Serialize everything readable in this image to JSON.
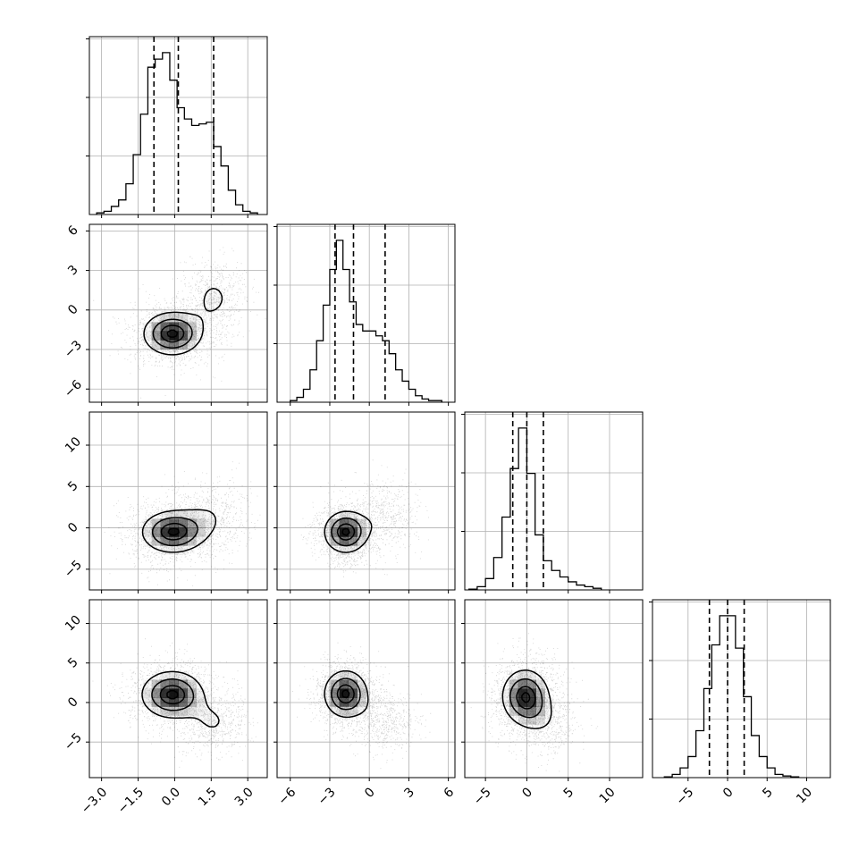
{
  "chart_data": {
    "type": "corner",
    "grid": true,
    "parameters": [
      {
        "range": [
          -3.5,
          3.8
        ],
        "ticks": [
          -3.0,
          -1.5,
          0.0,
          1.5,
          3.0
        ],
        "tick_labels": [
          "−3.0",
          "−1.5",
          "0.0",
          "1.5",
          "3.0"
        ],
        "quantiles": [
          -0.85,
          0.15,
          1.6
        ],
        "histogram": {
          "bin_edges": [
            -3.2,
            -2.9,
            -2.6,
            -2.3,
            -2.0,
            -1.7,
            -1.4,
            -1.1,
            -0.8,
            -0.5,
            -0.2,
            0.1,
            0.4,
            0.7,
            1.0,
            1.3,
            1.6,
            1.9,
            2.2,
            2.5,
            2.8,
            3.1,
            3.4
          ],
          "counts": [
            0.01,
            0.02,
            0.05,
            0.09,
            0.19,
            0.37,
            0.62,
            0.91,
            0.96,
            1.0,
            0.83,
            0.66,
            0.59,
            0.55,
            0.56,
            0.57,
            0.42,
            0.3,
            0.15,
            0.06,
            0.02,
            0.01
          ]
        }
      },
      {
        "range": [
          -7,
          6.5
        ],
        "ticks": [
          -6,
          -3,
          0,
          3,
          6
        ],
        "tick_labels": [
          "−6",
          "−3",
          "0",
          "3",
          "6"
        ],
        "quantiles": [
          -2.6,
          -1.2,
          1.2
        ],
        "histogram": {
          "bin_edges": [
            -6.0,
            -5.5,
            -5.0,
            -4.5,
            -4.0,
            -3.5,
            -3.0,
            -2.5,
            -2.0,
            -1.5,
            -1.0,
            -0.5,
            0.0,
            0.5,
            1.0,
            1.5,
            2.0,
            2.5,
            3.0,
            3.5,
            4.0,
            4.5,
            5.0,
            5.5
          ],
          "counts": [
            0.01,
            0.03,
            0.08,
            0.2,
            0.38,
            0.6,
            0.82,
            1.0,
            0.82,
            0.62,
            0.48,
            0.44,
            0.44,
            0.41,
            0.38,
            0.3,
            0.2,
            0.13,
            0.08,
            0.04,
            0.02,
            0.01,
            0.01
          ]
        }
      },
      {
        "range": [
          -7.5,
          14
        ],
        "ticks": [
          -5,
          0,
          5,
          10
        ],
        "tick_labels": [
          "−5",
          "0",
          "5",
          "10"
        ],
        "quantiles": [
          -1.7,
          0.0,
          2.0
        ],
        "histogram": {
          "bin_edges": [
            -7.0,
            -6.0,
            -5.0,
            -4.0,
            -3.0,
            -2.0,
            -1.0,
            0.0,
            1.0,
            2.0,
            3.0,
            4.0,
            5.0,
            6.0,
            7.0,
            8.0,
            9.0
          ],
          "counts": [
            0.005,
            0.02,
            0.07,
            0.2,
            0.45,
            0.75,
            1.0,
            0.72,
            0.34,
            0.18,
            0.12,
            0.08,
            0.05,
            0.03,
            0.02,
            0.01
          ]
        }
      },
      {
        "range": [
          -9.5,
          13
        ],
        "ticks": [
          -5,
          0,
          5,
          10
        ],
        "tick_labels": [
          "−5",
          "0",
          "5",
          "10"
        ],
        "quantiles": [
          -2.3,
          0.0,
          2.1
        ],
        "histogram": {
          "bin_edges": [
            -8.0,
            -7.0,
            -6.0,
            -5.0,
            -4.0,
            -3.0,
            -2.0,
            -1.0,
            0.0,
            1.0,
            2.0,
            3.0,
            4.0,
            5.0,
            6.0,
            7.0,
            8.0,
            9.0
          ],
          "counts": [
            0.005,
            0.02,
            0.06,
            0.13,
            0.29,
            0.55,
            0.82,
            1.0,
            1.0,
            0.8,
            0.5,
            0.26,
            0.13,
            0.06,
            0.02,
            0.01,
            0.005
          ]
        }
      }
    ],
    "pairs": [
      {
        "x_param": 0,
        "y_param": 1,
        "blobs": [
          {
            "center": [
              -0.1,
              -1.8
            ],
            "sigma": [
              0.8,
              1.1
            ],
            "weight": 1.0
          },
          {
            "center": [
              1.6,
              0.9
            ],
            "sigma": [
              0.65,
              1.4
            ],
            "weight": 0.4
          }
        ]
      },
      {
        "x_param": 0,
        "y_param": 2,
        "blobs": [
          {
            "center": [
              -0.1,
              -0.5
            ],
            "sigma": [
              0.85,
              1.7
            ],
            "weight": 1.0
          },
          {
            "center": [
              1.5,
              1.5
            ],
            "sigma": [
              0.8,
              2.2
            ],
            "weight": 0.3
          }
        ]
      },
      {
        "x_param": 1,
        "y_param": 2,
        "blobs": [
          {
            "center": [
              -1.8,
              -0.5
            ],
            "sigma": [
              1.1,
              1.7
            ],
            "weight": 1.0
          },
          {
            "center": [
              1.3,
              1.4
            ],
            "sigma": [
              1.2,
              2.2
            ],
            "weight": 0.3
          }
        ]
      },
      {
        "x_param": 0,
        "y_param": 3,
        "blobs": [
          {
            "center": [
              -0.1,
              1.0
            ],
            "sigma": [
              0.85,
              2.0
            ],
            "weight": 1.0
          },
          {
            "center": [
              1.6,
              -2.5
            ],
            "sigma": [
              0.65,
              1.8
            ],
            "weight": 0.35
          }
        ]
      },
      {
        "x_param": 1,
        "y_param": 3,
        "blobs": [
          {
            "center": [
              -1.8,
              1.1
            ],
            "sigma": [
              1.1,
              2.0
            ],
            "weight": 1.0
          },
          {
            "center": [
              1.2,
              -2.2
            ],
            "sigma": [
              1.2,
              1.9
            ],
            "weight": 0.3
          }
        ]
      },
      {
        "x_param": 2,
        "y_param": 3,
        "blobs": [
          {
            "center": [
              -0.2,
              0.8
            ],
            "sigma": [
              1.9,
              2.3
            ],
            "weight": 1.0
          },
          {
            "center": [
              2.2,
              -2.5
            ],
            "sigma": [
              2.0,
              2.0
            ],
            "weight": 0.25
          }
        ]
      }
    ],
    "contour_levels": [
      0.35,
      0.62,
      0.85,
      0.97
    ],
    "colors": {
      "line": "#000000",
      "grid": "#b0b0b0",
      "scatter": "#000000",
      "density_dark": "#000000"
    }
  }
}
